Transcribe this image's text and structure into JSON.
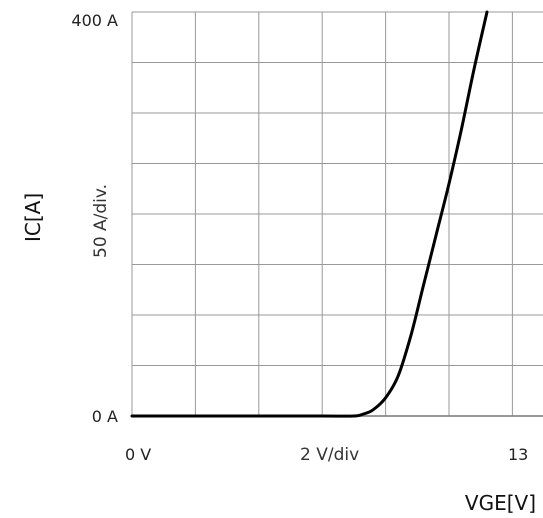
{
  "chart_data": {
    "type": "line",
    "xlabel": "VGE[V]",
    "ylabel": "IC[A]",
    "x_scale_label": "2  V/div",
    "y_scale_label": "50  A/div.",
    "x_tick_labels": {
      "min": "0  V",
      "max": "13"
    },
    "y_tick_labels": {
      "min": "0  A",
      "max": "400  A"
    },
    "xlim": [
      0,
      13
    ],
    "ylim": [
      0,
      400
    ],
    "x_divisions": 6.5,
    "y_divisions": 8,
    "grid": true,
    "series": [
      {
        "x": [
          0,
          2,
          4,
          6,
          7.0,
          7.3,
          7.6,
          8.0,
          8.4,
          8.8,
          9.2,
          9.6,
          10.0,
          10.4,
          10.8,
          11.2
        ],
        "y": [
          0,
          0,
          0,
          0,
          0,
          2,
          6,
          18,
          40,
          80,
          130,
          180,
          230,
          285,
          345,
          400
        ]
      }
    ],
    "colors": {
      "grid": "#999999",
      "line": "#000000"
    }
  }
}
